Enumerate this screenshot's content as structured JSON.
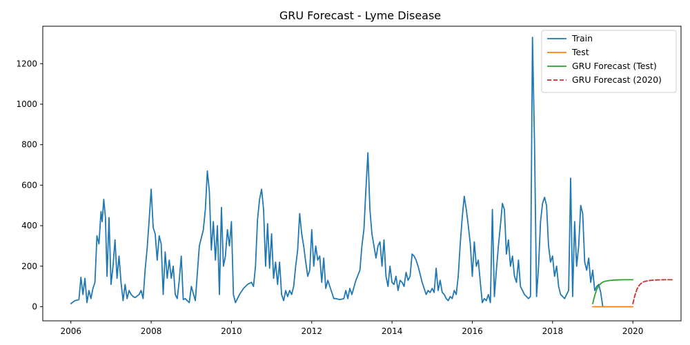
{
  "chart_data": {
    "type": "line",
    "title": "GRU Forecast - Lyme Disease",
    "xlabel": "",
    "ylabel": "",
    "xlim": [
      2005.3,
      2021.2
    ],
    "ylim": [
      -70,
      1385
    ],
    "x_ticks": [
      "2006",
      "2008",
      "2010",
      "2012",
      "2014",
      "2016",
      "2018",
      "2020"
    ],
    "y_ticks": [
      "0",
      "200",
      "400",
      "600",
      "800",
      "1000",
      "1200"
    ],
    "grid": false,
    "legend_position": "top-right",
    "series": [
      {
        "name": "Train",
        "color": "#1f77b4",
        "style": "solid",
        "points": [
          [
            2006.0,
            15
          ],
          [
            2006.1,
            30
          ],
          [
            2006.2,
            35
          ],
          [
            2006.25,
            145
          ],
          [
            2006.3,
            60
          ],
          [
            2006.35,
            140
          ],
          [
            2006.4,
            20
          ],
          [
            2006.45,
            80
          ],
          [
            2006.5,
            40
          ],
          [
            2006.55,
            90
          ],
          [
            2006.6,
            120
          ],
          [
            2006.65,
            350
          ],
          [
            2006.7,
            310
          ],
          [
            2006.75,
            470
          ],
          [
            2006.78,
            420
          ],
          [
            2006.82,
            530
          ],
          [
            2006.86,
            440
          ],
          [
            2006.9,
            150
          ],
          [
            2006.95,
            440
          ],
          [
            2007.0,
            110
          ],
          [
            2007.05,
            200
          ],
          [
            2007.1,
            330
          ],
          [
            2007.15,
            140
          ],
          [
            2007.2,
            250
          ],
          [
            2007.25,
            120
          ],
          [
            2007.3,
            30
          ],
          [
            2007.35,
            110
          ],
          [
            2007.4,
            40
          ],
          [
            2007.45,
            80
          ],
          [
            2007.5,
            60
          ],
          [
            2007.55,
            50
          ],
          [
            2007.6,
            45
          ],
          [
            2007.7,
            60
          ],
          [
            2007.75,
            80
          ],
          [
            2007.8,
            40
          ],
          [
            2007.85,
            180
          ],
          [
            2007.9,
            290
          ],
          [
            2007.95,
            430
          ],
          [
            2008.0,
            580
          ],
          [
            2008.05,
            390
          ],
          [
            2008.1,
            360
          ],
          [
            2008.15,
            230
          ],
          [
            2008.2,
            350
          ],
          [
            2008.25,
            310
          ],
          [
            2008.3,
            60
          ],
          [
            2008.35,
            270
          ],
          [
            2008.4,
            140
          ],
          [
            2008.45,
            230
          ],
          [
            2008.5,
            140
          ],
          [
            2008.55,
            200
          ],
          [
            2008.6,
            60
          ],
          [
            2008.65,
            40
          ],
          [
            2008.7,
            130
          ],
          [
            2008.75,
            250
          ],
          [
            2008.8,
            35
          ],
          [
            2008.85,
            40
          ],
          [
            2008.9,
            30
          ],
          [
            2008.95,
            20
          ],
          [
            2009.0,
            100
          ],
          [
            2009.1,
            30
          ],
          [
            2009.2,
            300
          ],
          [
            2009.3,
            380
          ],
          [
            2009.35,
            480
          ],
          [
            2009.4,
            670
          ],
          [
            2009.45,
            570
          ],
          [
            2009.5,
            280
          ],
          [
            2009.55,
            420
          ],
          [
            2009.6,
            230
          ],
          [
            2009.65,
            400
          ],
          [
            2009.7,
            60
          ],
          [
            2009.75,
            490
          ],
          [
            2009.8,
            200
          ],
          [
            2009.85,
            250
          ],
          [
            2009.9,
            380
          ],
          [
            2009.95,
            300
          ],
          [
            2010.0,
            420
          ],
          [
            2010.05,
            60
          ],
          [
            2010.1,
            20
          ],
          [
            2010.2,
            60
          ],
          [
            2010.3,
            90
          ],
          [
            2010.4,
            110
          ],
          [
            2010.5,
            120
          ],
          [
            2010.55,
            100
          ],
          [
            2010.6,
            200
          ],
          [
            2010.65,
            430
          ],
          [
            2010.7,
            530
          ],
          [
            2010.75,
            580
          ],
          [
            2010.8,
            480
          ],
          [
            2010.85,
            200
          ],
          [
            2010.9,
            410
          ],
          [
            2010.95,
            190
          ],
          [
            2011.0,
            360
          ],
          [
            2011.05,
            140
          ],
          [
            2011.1,
            220
          ],
          [
            2011.15,
            110
          ],
          [
            2011.2,
            220
          ],
          [
            2011.25,
            60
          ],
          [
            2011.3,
            30
          ],
          [
            2011.35,
            80
          ],
          [
            2011.4,
            50
          ],
          [
            2011.45,
            80
          ],
          [
            2011.5,
            60
          ],
          [
            2011.55,
            100
          ],
          [
            2011.6,
            200
          ],
          [
            2011.65,
            280
          ],
          [
            2011.7,
            460
          ],
          [
            2011.75,
            360
          ],
          [
            2011.8,
            300
          ],
          [
            2011.85,
            220
          ],
          [
            2011.9,
            150
          ],
          [
            2011.95,
            180
          ],
          [
            2012.0,
            380
          ],
          [
            2012.05,
            200
          ],
          [
            2012.1,
            300
          ],
          [
            2012.15,
            230
          ],
          [
            2012.2,
            250
          ],
          [
            2012.25,
            120
          ],
          [
            2012.3,
            240
          ],
          [
            2012.35,
            90
          ],
          [
            2012.4,
            130
          ],
          [
            2012.45,
            100
          ],
          [
            2012.5,
            70
          ],
          [
            2012.55,
            40
          ],
          [
            2012.6,
            40
          ],
          [
            2012.7,
            35
          ],
          [
            2012.8,
            40
          ],
          [
            2012.85,
            80
          ],
          [
            2012.9,
            40
          ],
          [
            2012.95,
            90
          ],
          [
            2013.0,
            60
          ],
          [
            2013.1,
            130
          ],
          [
            2013.2,
            180
          ],
          [
            2013.25,
            300
          ],
          [
            2013.3,
            380
          ],
          [
            2013.35,
            580
          ],
          [
            2013.4,
            760
          ],
          [
            2013.45,
            480
          ],
          [
            2013.5,
            360
          ],
          [
            2013.55,
            300
          ],
          [
            2013.6,
            240
          ],
          [
            2013.65,
            300
          ],
          [
            2013.7,
            320
          ],
          [
            2013.75,
            200
          ],
          [
            2013.8,
            330
          ],
          [
            2013.85,
            150
          ],
          [
            2013.9,
            100
          ],
          [
            2013.95,
            200
          ],
          [
            2014.0,
            120
          ],
          [
            2014.05,
            110
          ],
          [
            2014.1,
            150
          ],
          [
            2014.15,
            80
          ],
          [
            2014.2,
            130
          ],
          [
            2014.25,
            120
          ],
          [
            2014.3,
            100
          ],
          [
            2014.35,
            170
          ],
          [
            2014.4,
            130
          ],
          [
            2014.45,
            150
          ],
          [
            2014.5,
            260
          ],
          [
            2014.55,
            250
          ],
          [
            2014.6,
            230
          ],
          [
            2014.65,
            200
          ],
          [
            2014.7,
            160
          ],
          [
            2014.75,
            120
          ],
          [
            2014.8,
            90
          ],
          [
            2014.85,
            60
          ],
          [
            2014.9,
            80
          ],
          [
            2014.95,
            70
          ],
          [
            2015.0,
            90
          ],
          [
            2015.05,
            70
          ],
          [
            2015.1,
            190
          ],
          [
            2015.15,
            80
          ],
          [
            2015.2,
            130
          ],
          [
            2015.25,
            70
          ],
          [
            2015.3,
            60
          ],
          [
            2015.35,
            40
          ],
          [
            2015.4,
            30
          ],
          [
            2015.45,
            50
          ],
          [
            2015.5,
            40
          ],
          [
            2015.55,
            80
          ],
          [
            2015.6,
            60
          ],
          [
            2015.65,
            150
          ],
          [
            2015.7,
            310
          ],
          [
            2015.75,
            440
          ],
          [
            2015.8,
            545
          ],
          [
            2015.85,
            480
          ],
          [
            2015.9,
            400
          ],
          [
            2015.95,
            310
          ],
          [
            2016.0,
            150
          ],
          [
            2016.05,
            320
          ],
          [
            2016.1,
            200
          ],
          [
            2016.15,
            230
          ],
          [
            2016.2,
            120
          ],
          [
            2016.25,
            20
          ],
          [
            2016.3,
            40
          ],
          [
            2016.35,
            30
          ],
          [
            2016.4,
            60
          ],
          [
            2016.45,
            20
          ],
          [
            2016.5,
            480
          ],
          [
            2016.55,
            50
          ],
          [
            2016.6,
            180
          ],
          [
            2016.65,
            300
          ],
          [
            2016.7,
            400
          ],
          [
            2016.75,
            510
          ],
          [
            2016.8,
            480
          ],
          [
            2016.85,
            260
          ],
          [
            2016.9,
            330
          ],
          [
            2016.95,
            200
          ],
          [
            2017.0,
            250
          ],
          [
            2017.05,
            150
          ],
          [
            2017.1,
            120
          ],
          [
            2017.15,
            230
          ],
          [
            2017.2,
            100
          ],
          [
            2017.25,
            80
          ],
          [
            2017.3,
            60
          ],
          [
            2017.35,
            50
          ],
          [
            2017.4,
            40
          ],
          [
            2017.45,
            50
          ],
          [
            2017.5,
            1330
          ],
          [
            2017.55,
            800
          ],
          [
            2017.6,
            50
          ],
          [
            2017.65,
            200
          ],
          [
            2017.7,
            420
          ],
          [
            2017.75,
            510
          ],
          [
            2017.8,
            540
          ],
          [
            2017.85,
            500
          ],
          [
            2017.9,
            300
          ],
          [
            2017.95,
            220
          ],
          [
            2018.0,
            250
          ],
          [
            2018.05,
            150
          ],
          [
            2018.1,
            200
          ],
          [
            2018.15,
            100
          ],
          [
            2018.2,
            60
          ],
          [
            2018.25,
            50
          ],
          [
            2018.3,
            40
          ],
          [
            2018.35,
            60
          ],
          [
            2018.4,
            80
          ],
          [
            2018.45,
            635
          ],
          [
            2018.5,
            50
          ],
          [
            2018.55,
            420
          ],
          [
            2018.6,
            200
          ],
          [
            2018.65,
            300
          ],
          [
            2018.7,
            500
          ],
          [
            2018.75,
            460
          ],
          [
            2018.8,
            220
          ],
          [
            2018.85,
            180
          ],
          [
            2018.9,
            240
          ],
          [
            2018.95,
            120
          ],
          [
            2019.0,
            180
          ],
          [
            2019.05,
            80
          ],
          [
            2019.1,
            100
          ],
          [
            2019.15,
            110
          ],
          [
            2019.2,
            70
          ],
          [
            2019.25,
            0
          ],
          [
            2019.3,
            0
          ]
        ]
      },
      {
        "name": "Test",
        "color": "#ff7f0e",
        "style": "solid",
        "points": [
          [
            2019.0,
            0
          ],
          [
            2020.0,
            0
          ]
        ]
      },
      {
        "name": "GRU Forecast (Test)",
        "color": "#2ca02c",
        "style": "solid",
        "points": [
          [
            2019.0,
            15
          ],
          [
            2019.05,
            55
          ],
          [
            2019.1,
            85
          ],
          [
            2019.15,
            103
          ],
          [
            2019.2,
            114
          ],
          [
            2019.25,
            121
          ],
          [
            2019.3,
            125
          ],
          [
            2019.4,
            129
          ],
          [
            2019.5,
            131
          ],
          [
            2019.6,
            132
          ],
          [
            2019.8,
            133
          ],
          [
            2020.0,
            133
          ]
        ]
      },
      {
        "name": "GRU Forecast (2020)",
        "color": "#d62728",
        "style": "dashed",
        "points": [
          [
            2020.0,
            15
          ],
          [
            2020.05,
            55
          ],
          [
            2020.1,
            85
          ],
          [
            2020.15,
            103
          ],
          [
            2020.2,
            114
          ],
          [
            2020.25,
            121
          ],
          [
            2020.3,
            125
          ],
          [
            2020.4,
            129
          ],
          [
            2020.5,
            131
          ],
          [
            2020.6,
            132
          ],
          [
            2020.8,
            133
          ],
          [
            2021.0,
            133
          ]
        ]
      }
    ]
  }
}
